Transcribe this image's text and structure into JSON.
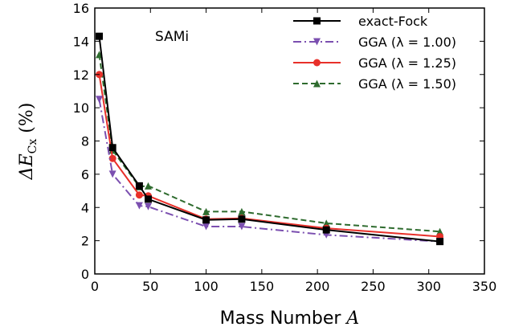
{
  "chart_data": {
    "type": "line",
    "annotation": "SAMi",
    "xlabel_text": "Mass Number ",
    "xlabel_var": "A",
    "ylabel_main": "ΔE",
    "ylabel_sub": "Cx",
    "ylabel_unit": " (%)",
    "xlim": [
      0,
      350
    ],
    "ylim": [
      0,
      16
    ],
    "xticks": [
      0,
      50,
      100,
      150,
      200,
      250,
      300,
      350
    ],
    "yticks": [
      0,
      2,
      4,
      6,
      8,
      10,
      12,
      14,
      16
    ],
    "x": [
      4,
      16,
      40,
      48,
      100,
      132,
      208,
      310
    ],
    "series": [
      {
        "name": "exact-Fock",
        "color": "#000000",
        "marker": "square",
        "dash": "solid",
        "values": [
          14.3,
          7.6,
          5.3,
          4.5,
          3.25,
          3.3,
          2.65,
          1.95
        ]
      },
      {
        "name": "GGA (λ = 1.00)",
        "color": "#7b4fb0",
        "marker": "triangle-down",
        "dash": "dashdot",
        "values": [
          10.5,
          6.0,
          4.1,
          4.05,
          2.85,
          2.85,
          2.35,
          1.95
        ]
      },
      {
        "name": "GGA (λ = 1.25)",
        "color": "#e8302a",
        "marker": "circle",
        "dash": "solid",
        "values": [
          12.0,
          6.95,
          4.75,
          4.7,
          3.3,
          3.35,
          2.75,
          2.25
        ]
      },
      {
        "name": "GGA (λ = 1.50)",
        "color": "#2e6b2e",
        "marker": "triangle-up",
        "dash": "dashed",
        "values": [
          13.2,
          7.45,
          5.25,
          5.3,
          3.75,
          3.75,
          3.05,
          2.55
        ]
      }
    ],
    "legend_position": "top-right",
    "grid": false
  }
}
